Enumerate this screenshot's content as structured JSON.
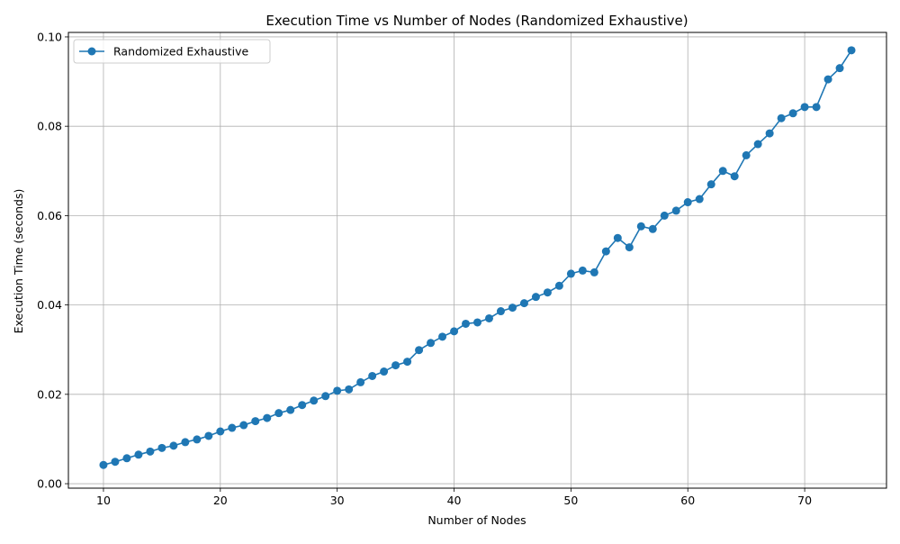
{
  "chart_data": {
    "type": "line",
    "title": "Execution Time vs Number of Nodes (Randomized Exhaustive)",
    "xlabel": "Number of Nodes",
    "ylabel": "Execution Time (seconds)",
    "xlim": [
      7,
      77
    ],
    "ylim": [
      -0.001,
      0.101
    ],
    "xticks": [
      10,
      20,
      30,
      40,
      50,
      60,
      70
    ],
    "xtick_labels": [
      "10",
      "20",
      "30",
      "40",
      "50",
      "60",
      "70"
    ],
    "yticks": [
      0.0,
      0.02,
      0.04,
      0.06,
      0.08,
      0.1
    ],
    "ytick_labels": [
      "0.00",
      "0.02",
      "0.04",
      "0.06",
      "0.08",
      "0.10"
    ],
    "grid": true,
    "legend_position": "upper-left",
    "colors": {
      "series": "#1f77b4",
      "grid": "#b0b0b0",
      "axes": "#000000"
    },
    "x": [
      10,
      11,
      12,
      13,
      14,
      15,
      16,
      17,
      18,
      19,
      20,
      21,
      22,
      23,
      24,
      25,
      26,
      27,
      28,
      29,
      30,
      31,
      32,
      33,
      34,
      35,
      36,
      37,
      38,
      39,
      40,
      41,
      42,
      43,
      44,
      45,
      46,
      47,
      48,
      49,
      50,
      51,
      52,
      53,
      54,
      55,
      56,
      57,
      58,
      59,
      60,
      61,
      62,
      63,
      64,
      65,
      66,
      67,
      68,
      69,
      70,
      71,
      72,
      73,
      74
    ],
    "series": [
      {
        "name": "Randomized Exhaustive",
        "marker": "circle",
        "values": [
          0.0042,
          0.0049,
          0.0057,
          0.0065,
          0.0072,
          0.008,
          0.0085,
          0.0093,
          0.0099,
          0.0107,
          0.0117,
          0.0125,
          0.0131,
          0.014,
          0.0147,
          0.0158,
          0.0165,
          0.0176,
          0.0186,
          0.0196,
          0.0208,
          0.0211,
          0.0227,
          0.0241,
          0.0251,
          0.0265,
          0.0273,
          0.0299,
          0.0315,
          0.0329,
          0.0341,
          0.0358,
          0.0361,
          0.037,
          0.0386,
          0.0394,
          0.0404,
          0.0418,
          0.0428,
          0.0443,
          0.047,
          0.0477,
          0.0473,
          0.052,
          0.055,
          0.0529,
          0.0576,
          0.057,
          0.06,
          0.0611,
          0.063,
          0.0637,
          0.067,
          0.07,
          0.0688,
          0.0735,
          0.076,
          0.0784,
          0.0818,
          0.0829,
          0.0843,
          0.0843,
          0.0905,
          0.093,
          0.097
        ]
      }
    ]
  }
}
